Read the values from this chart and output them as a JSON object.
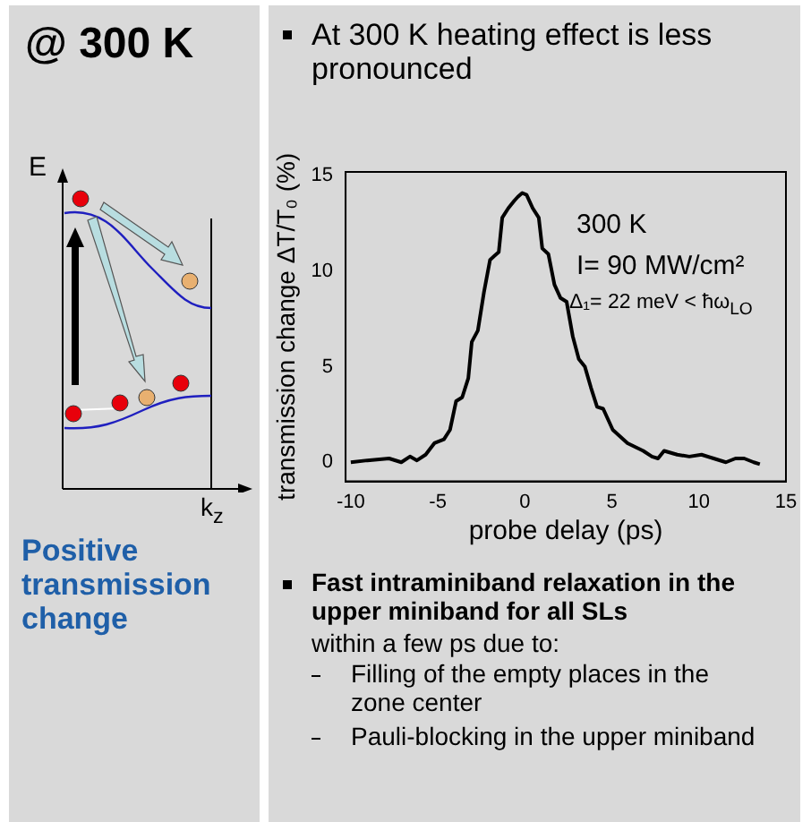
{
  "chart_data": {
    "type": "line",
    "xlabel": "probe delay (ps)",
    "ylabel": "transmission change ΔT/T₀ (%)",
    "xlim": [
      -10.3,
      15
    ],
    "ylim": [
      -1,
      15.2
    ],
    "xticks": [
      -10,
      -5,
      0,
      5,
      10,
      15
    ],
    "yticks": [
      0,
      5,
      10,
      15
    ],
    "grid": false,
    "legend": false,
    "marker": "none",
    "series": [
      {
        "color": "#000000",
        "x": [
          -10,
          -9.05,
          -7.8,
          -7.1,
          -6.6,
          -6.2,
          -5.7,
          -5.2,
          -4.65,
          -4.3,
          -3.95,
          -3.6,
          -3.25,
          -3.05,
          -2.7,
          -2.35,
          -2.0,
          -1.75,
          -1.5,
          -1.3,
          -0.95,
          -0.6,
          -0.4,
          -0.15,
          0.1,
          0.45,
          0.8,
          1.0,
          1.35,
          1.7,
          2.05,
          2.4,
          2.75,
          3.1,
          3.45,
          3.8,
          4.15,
          4.5,
          5.05,
          5.9,
          6.8,
          7.3,
          7.65,
          8.0,
          8.75,
          9.45,
          10.15,
          10.85,
          11.55,
          12.1,
          12.6,
          13.15,
          13.5
        ],
        "values": [
          0,
          0.1,
          0.2,
          0,
          0.3,
          0.1,
          0.4,
          1.0,
          1.2,
          1.7,
          3.2,
          3.4,
          4.4,
          6.3,
          6.9,
          8.9,
          10.6,
          10.8,
          11.0,
          12.8,
          13.3,
          13.7,
          13.9,
          14.1,
          14.0,
          13.3,
          12.8,
          11.2,
          10.9,
          9.3,
          8.6,
          8.4,
          6.6,
          5.4,
          5.0,
          3.9,
          2.9,
          2.8,
          1.7,
          1.0,
          0.6,
          0.3,
          0.2,
          0.6,
          0.4,
          0.3,
          0.4,
          0.2,
          0,
          0.2,
          0.2,
          0,
          -0.1
        ]
      }
    ],
    "annotations": [
      "@ 300 K",
      "At 300 K heating effect is less pronounced",
      "300 K",
      "I= 90 MW/cm²",
      "Δ₁= 22 meV < ħω$_{LO}$",
      "Positive transmission change",
      "Fast intraminiband relaxation in the upper miniband for all SLs",
      "within a few ps due to:",
      "Filling of the empty places in the zone center",
      "Pauli-blocking in the upper miniband",
      "E",
      "k$_{z}$"
    ]
  }
}
